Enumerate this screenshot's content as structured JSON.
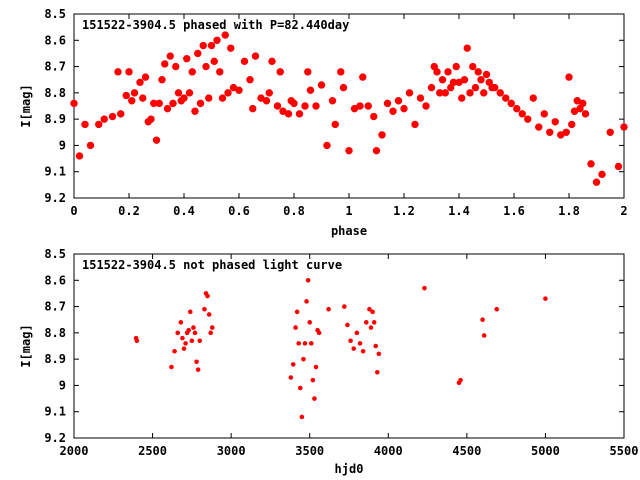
{
  "chart_data": [
    {
      "type": "scatter",
      "title": "151522-3904.5 phased with P=82.440day",
      "xlabel": "phase",
      "ylabel": "I[mag]",
      "xlim": [
        0,
        2
      ],
      "ylim": [
        9.2,
        8.5
      ],
      "y_inverted": true,
      "grid": false,
      "legend": "none",
      "marker_color": "#ff0000",
      "marker": "filled-circle",
      "x_ticks": [
        "0",
        "0.2",
        "0.4",
        "0.6",
        "0.8",
        "1",
        "1.2",
        "1.4",
        "1.6",
        "1.8",
        "2"
      ],
      "y_ticks": [
        "8.5",
        "8.6",
        "8.7",
        "8.8",
        "8.9",
        "9",
        "9.1",
        "9.2"
      ],
      "x": [
        0.0,
        0.02,
        0.04,
        0.06,
        0.09,
        0.11,
        0.14,
        0.16,
        0.17,
        0.19,
        0.2,
        0.21,
        0.22,
        0.24,
        0.25,
        0.26,
        0.27,
        0.28,
        0.29,
        0.3,
        0.31,
        0.32,
        0.33,
        0.34,
        0.35,
        0.36,
        0.37,
        0.38,
        0.39,
        0.4,
        0.41,
        0.42,
        0.43,
        0.44,
        0.45,
        0.46,
        0.47,
        0.48,
        0.49,
        0.5,
        0.51,
        0.52,
        0.53,
        0.54,
        0.55,
        0.56,
        0.57,
        0.58,
        0.6,
        0.62,
        0.64,
        0.65,
        0.66,
        0.68,
        0.7,
        0.71,
        0.72,
        0.74,
        0.75,
        0.76,
        0.78,
        0.79,
        0.8,
        0.82,
        0.84,
        0.85,
        0.86,
        0.88,
        0.9,
        0.92,
        0.94,
        0.95,
        0.97,
        0.98,
        1.0,
        1.02,
        1.04,
        1.05,
        1.07,
        1.09,
        1.1,
        1.12,
        1.14,
        1.16,
        1.18,
        1.2,
        1.22,
        1.24,
        1.26,
        1.28,
        1.3,
        1.31,
        1.32,
        1.33,
        1.34,
        1.35,
        1.36,
        1.37,
        1.38,
        1.39,
        1.4,
        1.41,
        1.42,
        1.43,
        1.44,
        1.45,
        1.46,
        1.47,
        1.48,
        1.49,
        1.5,
        1.51,
        1.52,
        1.53,
        1.55,
        1.57,
        1.59,
        1.61,
        1.63,
        1.65,
        1.67,
        1.69,
        1.71,
        1.73,
        1.75,
        1.77,
        1.79,
        1.8,
        1.81,
        1.82,
        1.83,
        1.84,
        1.85,
        1.86,
        1.88,
        1.9,
        1.92,
        1.95,
        1.98,
        2.0
      ],
      "y": [
        8.84,
        9.04,
        8.92,
        9.0,
        8.92,
        8.9,
        8.89,
        8.72,
        8.88,
        8.81,
        8.72,
        8.83,
        8.8,
        8.76,
        8.82,
        8.74,
        8.91,
        8.9,
        8.84,
        8.98,
        8.84,
        8.75,
        8.69,
        8.86,
        8.66,
        8.84,
        8.7,
        8.8,
        8.83,
        8.82,
        8.67,
        8.8,
        8.72,
        8.87,
        8.65,
        8.84,
        8.62,
        8.7,
        8.82,
        8.62,
        8.68,
        8.6,
        8.72,
        8.82,
        8.58,
        8.8,
        8.63,
        8.78,
        8.79,
        8.68,
        8.75,
        8.86,
        8.66,
        8.82,
        8.83,
        8.8,
        8.68,
        8.85,
        8.72,
        8.87,
        8.88,
        8.83,
        8.84,
        8.88,
        8.85,
        8.72,
        8.79,
        8.85,
        8.77,
        9.0,
        8.83,
        8.92,
        8.72,
        8.78,
        9.02,
        8.86,
        8.85,
        8.74,
        8.85,
        8.89,
        9.02,
        8.96,
        8.84,
        8.87,
        8.83,
        8.86,
        8.8,
        8.92,
        8.82,
        8.85,
        8.78,
        8.7,
        8.72,
        8.8,
        8.75,
        8.8,
        8.72,
        8.78,
        8.76,
        8.7,
        8.76,
        8.82,
        8.75,
        8.63,
        8.8,
        8.7,
        8.78,
        8.72,
        8.75,
        8.8,
        8.73,
        8.76,
        8.78,
        8.78,
        8.8,
        8.82,
        8.84,
        8.86,
        8.88,
        8.9,
        8.82,
        8.93,
        8.88,
        8.95,
        8.91,
        8.96,
        8.95,
        8.74,
        8.92,
        8.87,
        8.83,
        8.86,
        8.84,
        8.88,
        9.07,
        9.14,
        9.11,
        8.95,
        9.08,
        8.93
      ]
    },
    {
      "type": "scatter",
      "title": "151522-3904.5 not phased light curve",
      "xlabel": "hjd0",
      "ylabel": "I[mag]",
      "xlim": [
        2000,
        5500
      ],
      "ylim": [
        9.2,
        8.5
      ],
      "y_inverted": true,
      "grid": false,
      "legend": "none",
      "marker_color": "#ff0000",
      "marker": "small-filled-circle",
      "x_ticks": [
        "2000",
        "2500",
        "3000",
        "3500",
        "4000",
        "4500",
        "5000",
        "5500"
      ],
      "y_ticks": [
        "8.5",
        "8.6",
        "8.7",
        "8.8",
        "8.9",
        "9",
        "9.1",
        "9.2"
      ],
      "x": [
        2395,
        2400,
        2620,
        2640,
        2660,
        2680,
        2690,
        2700,
        2710,
        2720,
        2730,
        2740,
        2750,
        2760,
        2770,
        2780,
        2790,
        2800,
        2830,
        2840,
        2850,
        2860,
        2870,
        2880,
        3380,
        3395,
        3410,
        3420,
        3430,
        3440,
        3450,
        3460,
        3470,
        3480,
        3490,
        3500,
        3510,
        3520,
        3530,
        3540,
        3550,
        3560,
        3620,
        3720,
        3740,
        3760,
        3780,
        3800,
        3820,
        3840,
        3860,
        3880,
        3890,
        3900,
        3910,
        3920,
        3930,
        3940,
        4230,
        4450,
        4460,
        4600,
        4610,
        4690,
        5000
      ],
      "y": [
        8.82,
        8.83,
        8.93,
        8.87,
        8.8,
        8.76,
        8.82,
        8.86,
        8.84,
        8.8,
        8.79,
        8.72,
        8.83,
        8.78,
        8.8,
        8.91,
        8.94,
        8.83,
        8.71,
        8.65,
        8.66,
        8.73,
        8.8,
        8.78,
        8.97,
        8.92,
        8.78,
        8.72,
        8.84,
        9.01,
        9.12,
        8.9,
        8.84,
        8.68,
        8.6,
        8.76,
        8.84,
        8.98,
        9.05,
        8.93,
        8.79,
        8.8,
        8.71,
        8.7,
        8.77,
        8.83,
        8.86,
        8.8,
        8.84,
        8.87,
        8.76,
        8.71,
        8.78,
        8.72,
        8.76,
        8.85,
        8.95,
        8.88,
        8.63,
        8.99,
        8.98,
        8.75,
        8.81,
        8.71,
        8.67
      ]
    }
  ]
}
